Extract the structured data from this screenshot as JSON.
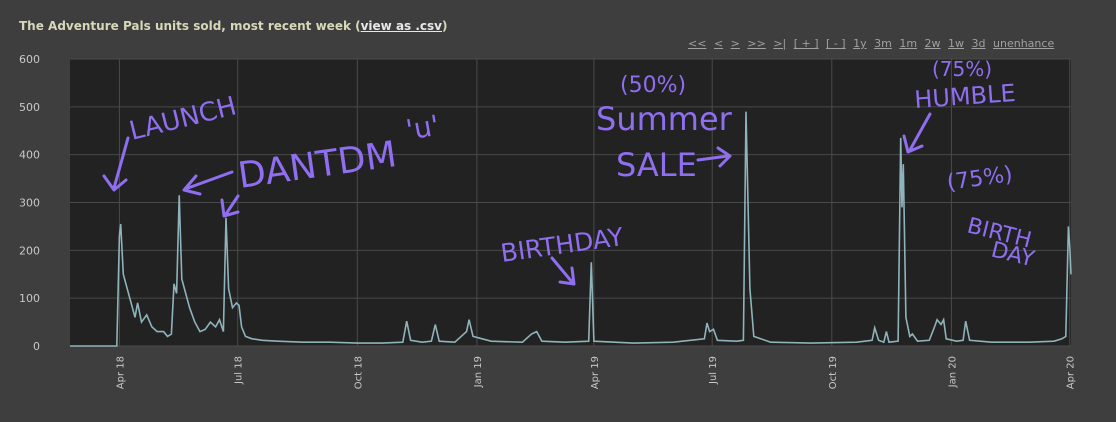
{
  "header": {
    "title_text": "The Adventure Pals units sold, most recent week (",
    "csv_link": "view as .csv",
    "title_close": ")"
  },
  "controls": {
    "nav": [
      "<<",
      "<",
      ">",
      ">>",
      ">|"
    ],
    "zoom": [
      "[ + ]",
      "[ - ]"
    ],
    "ranges": [
      "1y",
      "3m",
      "1m",
      "2w",
      "1w",
      "3d"
    ],
    "unenhance": "unenhance"
  },
  "colors": {
    "background": "#3e3e3e",
    "plot_bg": "#222222",
    "line": "#8fb3bb",
    "annotation": "#8f6ef0"
  },
  "annotations": {
    "launch": "LAUNCH",
    "dantdm": "DANTDM",
    "face": "'u'",
    "birthday1": "BIRTHDAY",
    "summer": "Summer",
    "sale": "SALE",
    "pct50": "(50%)",
    "humble": "HUMBLE",
    "pct75a": "(75%)",
    "pct75b": "(75%)",
    "birth": "BIRTH",
    "day": "DAY"
  },
  "chart_data": {
    "type": "line",
    "ylim": [
      0,
      600
    ],
    "yticks": [
      0,
      100,
      200,
      300,
      400,
      500,
      600
    ],
    "x_range": [
      "2018-02-22",
      "2020-04-02"
    ],
    "xtick_labels": [
      {
        "label": "Apr 18",
        "date": "2018-04-01"
      },
      {
        "label": "Jul 18",
        "date": "2018-07-01"
      },
      {
        "label": "Oct 18",
        "date": "2018-10-01"
      },
      {
        "label": "Jan 19",
        "date": "2019-01-01"
      },
      {
        "label": "Apr 19",
        "date": "2019-04-01"
      },
      {
        "label": "Jul 19",
        "date": "2019-07-01"
      },
      {
        "label": "Oct 19",
        "date": "2019-10-01"
      },
      {
        "label": "Jan 20",
        "date": "2020-01-01"
      },
      {
        "label": "Apr 20",
        "date": "2020-04-01"
      }
    ],
    "grid": true,
    "series": [
      {
        "points": [
          [
            "2018-02-22",
            0
          ],
          [
            "2018-03-30",
            0
          ],
          [
            "2018-04-01",
            230
          ],
          [
            "2018-04-02",
            255
          ],
          [
            "2018-04-04",
            150
          ],
          [
            "2018-04-08",
            110
          ],
          [
            "2018-04-11",
            80
          ],
          [
            "2018-04-13",
            60
          ],
          [
            "2018-04-15",
            90
          ],
          [
            "2018-04-18",
            50
          ],
          [
            "2018-04-22",
            65
          ],
          [
            "2018-04-26",
            40
          ],
          [
            "2018-04-30",
            30
          ],
          [
            "2018-05-05",
            30
          ],
          [
            "2018-05-08",
            20
          ],
          [
            "2018-05-11",
            25
          ],
          [
            "2018-05-13",
            130
          ],
          [
            "2018-05-15",
            110
          ],
          [
            "2018-05-17",
            315
          ],
          [
            "2018-05-19",
            140
          ],
          [
            "2018-05-22",
            110
          ],
          [
            "2018-05-25",
            80
          ],
          [
            "2018-05-29",
            50
          ],
          [
            "2018-06-02",
            30
          ],
          [
            "2018-06-06",
            35
          ],
          [
            "2018-06-10",
            50
          ],
          [
            "2018-06-14",
            40
          ],
          [
            "2018-06-17",
            55
          ],
          [
            "2018-06-20",
            30
          ],
          [
            "2018-06-22",
            268
          ],
          [
            "2018-06-24",
            120
          ],
          [
            "2018-06-27",
            80
          ],
          [
            "2018-06-30",
            90
          ],
          [
            "2018-07-02",
            85
          ],
          [
            "2018-07-04",
            40
          ],
          [
            "2018-07-07",
            20
          ],
          [
            "2018-07-12",
            15
          ],
          [
            "2018-07-20",
            12
          ],
          [
            "2018-08-01",
            10
          ],
          [
            "2018-08-20",
            8
          ],
          [
            "2018-09-10",
            8
          ],
          [
            "2018-10-01",
            6
          ],
          [
            "2018-10-20",
            6
          ],
          [
            "2018-11-05",
            8
          ],
          [
            "2018-11-08",
            52
          ],
          [
            "2018-11-11",
            12
          ],
          [
            "2018-11-20",
            8
          ],
          [
            "2018-11-27",
            10
          ],
          [
            "2018-11-30",
            45
          ],
          [
            "2018-12-03",
            10
          ],
          [
            "2018-12-15",
            8
          ],
          [
            "2018-12-24",
            30
          ],
          [
            "2018-12-26",
            55
          ],
          [
            "2018-12-29",
            20
          ],
          [
            "2019-01-05",
            15
          ],
          [
            "2019-01-12",
            10
          ],
          [
            "2019-02-05",
            8
          ],
          [
            "2019-02-12",
            25
          ],
          [
            "2019-02-16",
            30
          ],
          [
            "2019-02-20",
            10
          ],
          [
            "2019-03-10",
            8
          ],
          [
            "2019-03-28",
            10
          ],
          [
            "2019-03-30",
            175
          ],
          [
            "2019-04-01",
            10
          ],
          [
            "2019-05-01",
            6
          ],
          [
            "2019-06-01",
            8
          ],
          [
            "2019-06-25",
            15
          ],
          [
            "2019-06-27",
            48
          ],
          [
            "2019-06-29",
            30
          ],
          [
            "2019-07-02",
            35
          ],
          [
            "2019-07-05",
            12
          ],
          [
            "2019-07-20",
            10
          ],
          [
            "2019-07-25",
            12
          ],
          [
            "2019-07-27",
            490
          ],
          [
            "2019-07-30",
            120
          ],
          [
            "2019-08-02",
            20
          ],
          [
            "2019-08-15",
            8
          ],
          [
            "2019-09-15",
            6
          ],
          [
            "2019-10-20",
            8
          ],
          [
            "2019-11-01",
            12
          ],
          [
            "2019-11-03",
            38
          ],
          [
            "2019-11-06",
            12
          ],
          [
            "2019-11-10",
            8
          ],
          [
            "2019-11-12",
            30
          ],
          [
            "2019-11-14",
            8
          ],
          [
            "2019-11-21",
            10
          ],
          [
            "2019-11-23",
            435
          ],
          [
            "2019-11-24",
            290
          ],
          [
            "2019-11-25",
            380
          ],
          [
            "2019-11-27",
            60
          ],
          [
            "2019-11-30",
            20
          ],
          [
            "2019-12-02",
            25
          ],
          [
            "2019-12-06",
            10
          ],
          [
            "2019-12-15",
            12
          ],
          [
            "2019-12-19",
            40
          ],
          [
            "2019-12-21",
            55
          ],
          [
            "2019-12-24",
            45
          ],
          [
            "2019-12-26",
            55
          ],
          [
            "2019-12-28",
            15
          ],
          [
            "2020-01-05",
            10
          ],
          [
            "2020-01-10",
            12
          ],
          [
            "2020-01-12",
            52
          ],
          [
            "2020-01-15",
            12
          ],
          [
            "2020-02-01",
            8
          ],
          [
            "2020-03-01",
            8
          ],
          [
            "2020-03-20",
            10
          ],
          [
            "2020-03-26",
            15
          ],
          [
            "2020-03-29",
            20
          ],
          [
            "2020-03-31",
            250
          ],
          [
            "2020-04-01",
            210
          ],
          [
            "2020-04-02",
            150
          ]
        ]
      }
    ]
  }
}
